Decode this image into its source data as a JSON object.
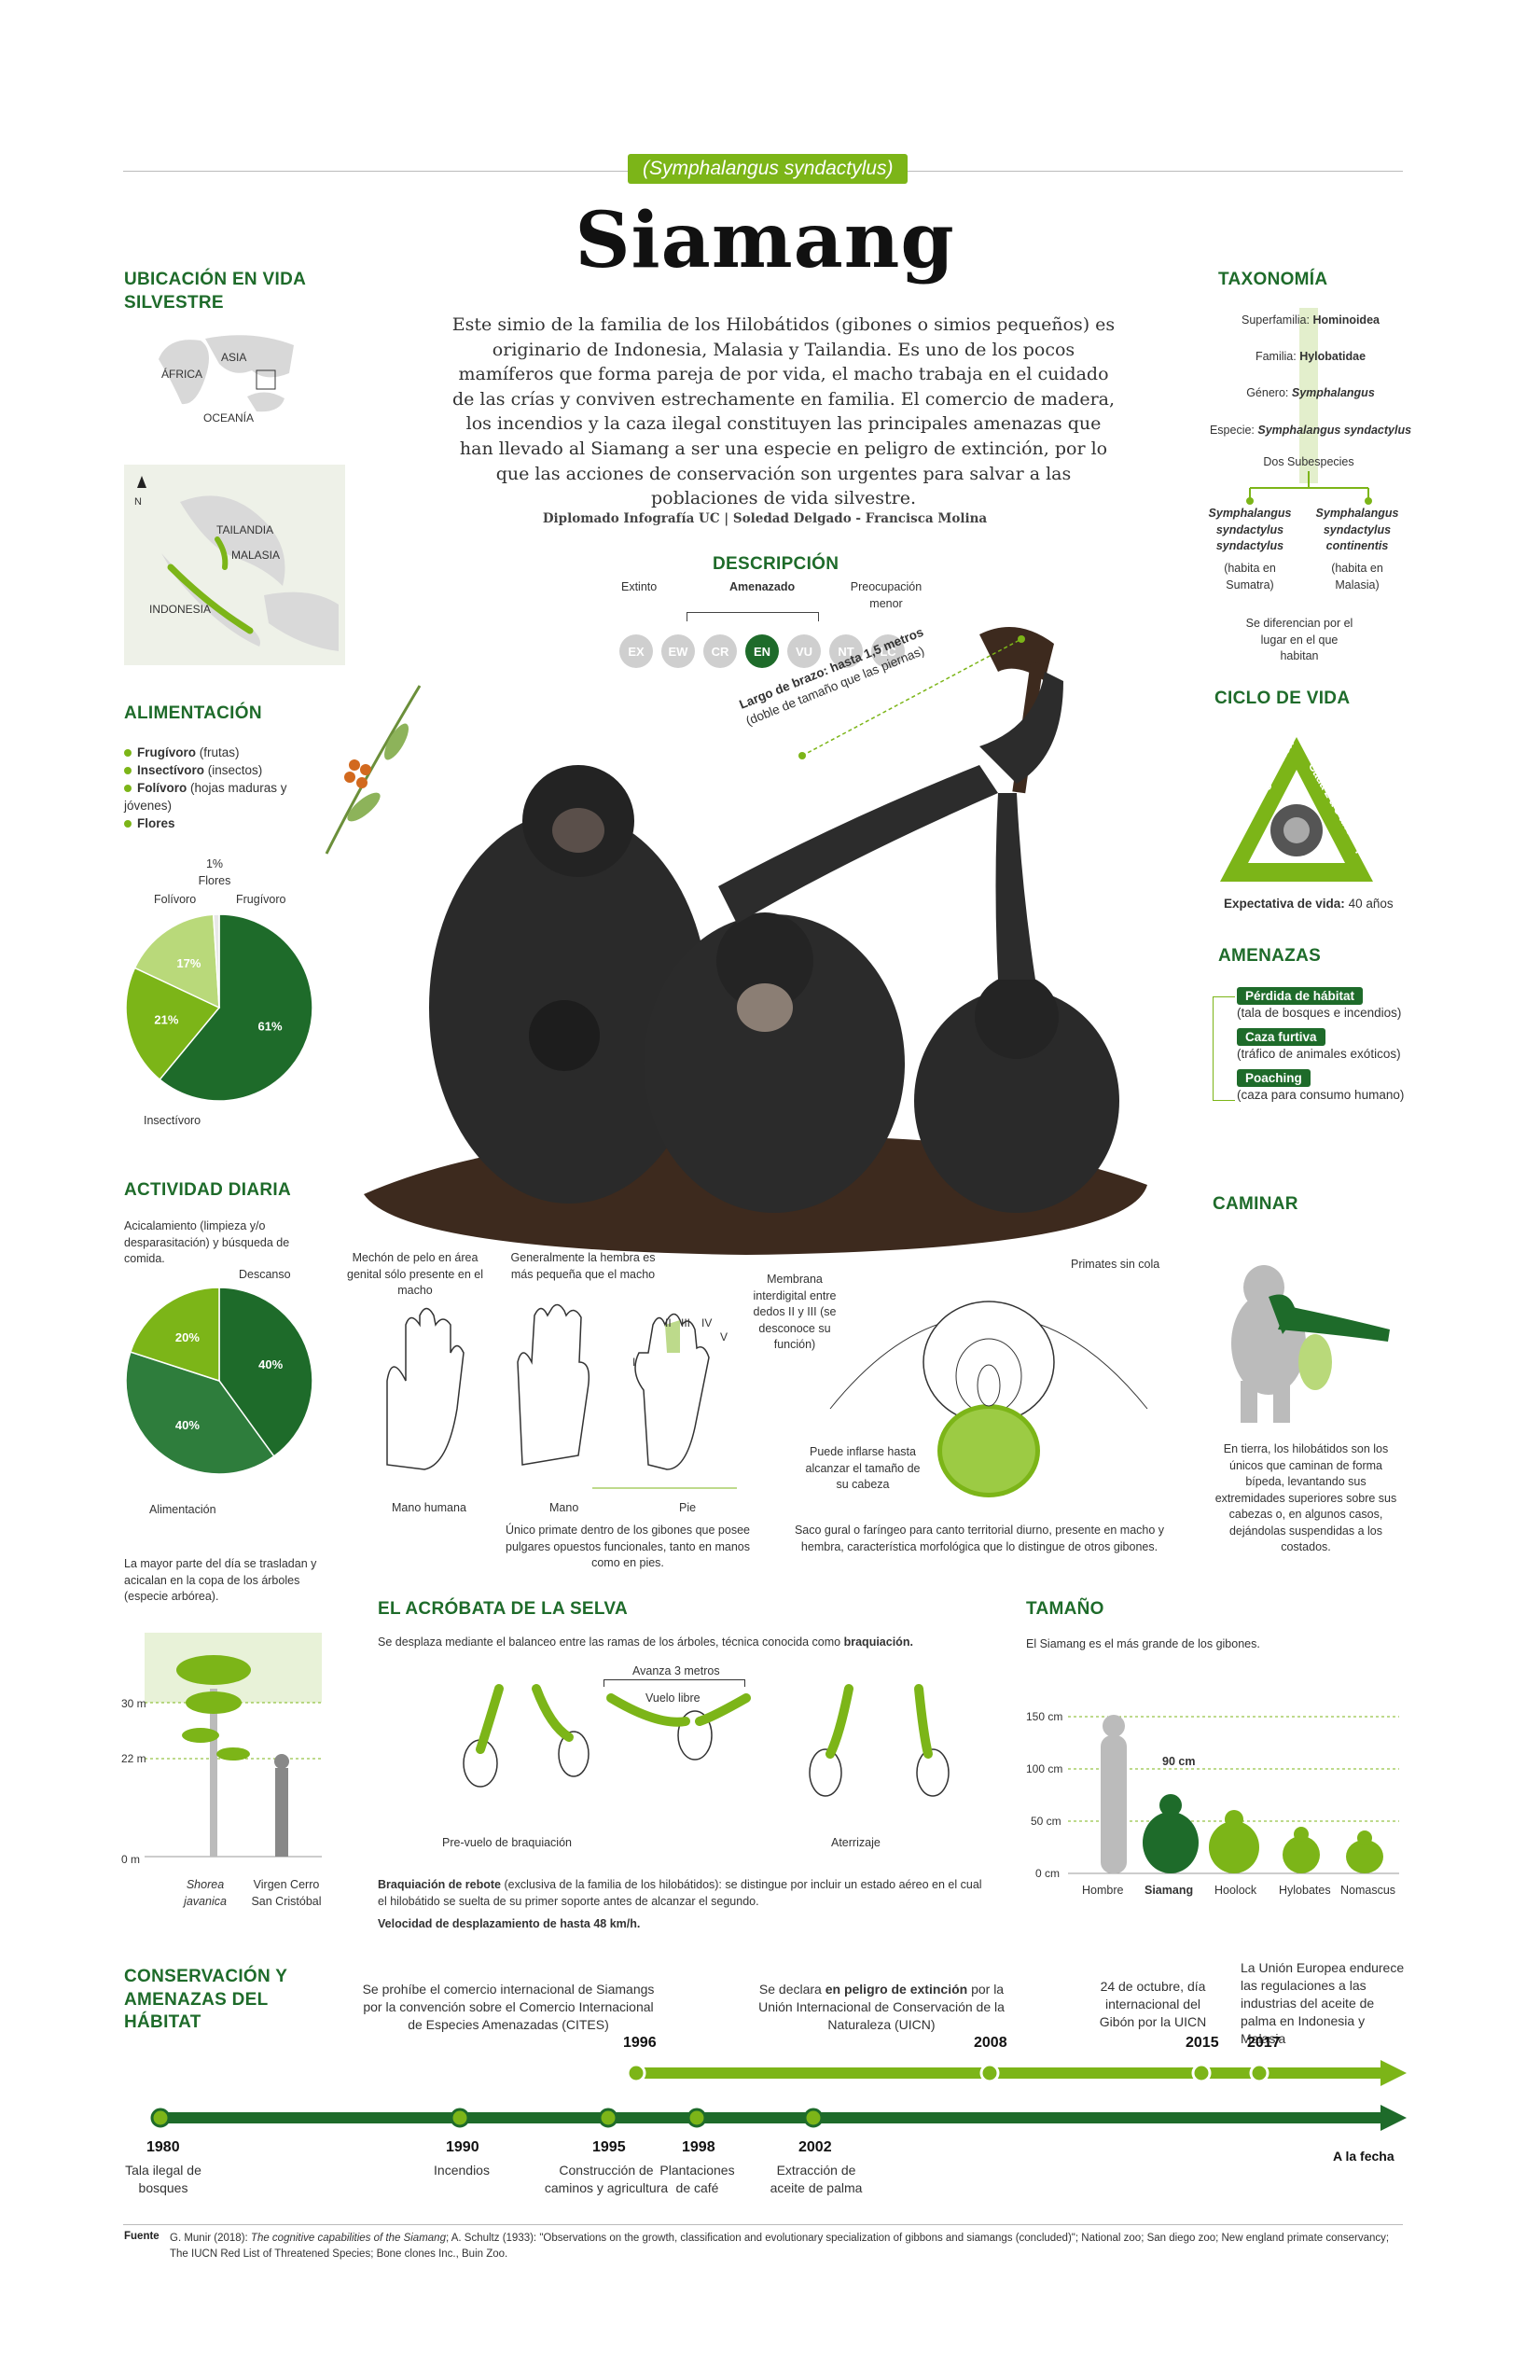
{
  "header": {
    "sci": "(Symphalangus syndactylus)",
    "title": "Siamang",
    "intro": "Este simio de la familia de los Hilobátidos (gibones o simios pequeños) es originario de Indonesia, Malasia y Tailandia. Es uno de los pocos mamíferos que forma pareja de por vida, el macho trabaja en el cuidado de las crías y conviven estrechamente en familia. El comercio de madera, los incendios y la caza ilegal constituyen las principales amenazas que han llevado al Siamang a ser una especie en peligro de extinción, por lo que las acciones de conservación son urgentes para salvar a las poblaciones de vida silvestre.",
    "credits": "Diplomado Infografía UC | Soledad Delgado - Francisca Molina"
  },
  "ubicacion": {
    "title": "UBICACIÓN EN VIDA SILVESTRE",
    "asia": "ASIA",
    "africa": "ÁFRICA",
    "oceania": "OCEANÍA",
    "tailandia": "TAILANDIA",
    "malasia": "MALASIA",
    "indonesia": "INDONESIA",
    "north": "N"
  },
  "descripcion": {
    "title": "DESCRIPCIÓN",
    "extinto": "Extinto",
    "amenazado": "Amenazado",
    "preocupacion": "Preocupación menor",
    "statuses": [
      "EX",
      "EW",
      "CR",
      "EN",
      "VU",
      "NT",
      "LC"
    ]
  },
  "taxonomia": {
    "title": "TAXONOMÍA",
    "rows": [
      {
        "k": "Superfamilia:",
        "v": "Hominoidea"
      },
      {
        "k": "Familia:",
        "v": "Hylobatidae"
      },
      {
        "k": "Género:",
        "v": "Symphalangus"
      },
      {
        "k": "Especie:",
        "v": "Symphalangus syndactylus"
      }
    ],
    "dos": "Dos Subespecies",
    "sub1": "Symphalangus syndactylus syndactylus",
    "sub1n": "(habita en Sumatra)",
    "sub2": "Symphalangus syndactylus continentis",
    "sub2n": "(habita en Malasia)",
    "note": "Se diferencian por el lugar en el que habitan"
  },
  "alimentacion": {
    "title": "ALIMENTACIÓN",
    "items": [
      {
        "b": "Frugívoro",
        "t": " (frutas)"
      },
      {
        "b": "Insectívoro",
        "t": " (insectos)"
      },
      {
        "b": "Folívoro",
        "t": " (hojas maduras y jóvenes)"
      },
      {
        "b": "Flores",
        "t": ""
      }
    ],
    "l_flores": "1%\nFlores",
    "l_folivoro": "Folívoro",
    "l_frugivoro": "Frugívoro",
    "l_insect": "Insectívoro"
  },
  "actividad": {
    "title": "ACTIVIDAD DIARIA",
    "acical": "Acicalamiento (limpieza y/o desparasitación) y búsqueda de comida.",
    "descanso": "Descanso",
    "aliment": "Alimentación",
    "arb": "La mayor parte del día se trasladan y acicalan en la copa de los árboles (especie arbórea).",
    "h30": "30 m",
    "h22": "22 m",
    "h0": "0 m",
    "tree": "Shorea javanica",
    "virgen": "Virgen Cerro San Cristóbal"
  },
  "ciclo": {
    "title": "CICLO DE VIDA",
    "left": "7 a 8 meses gestación",
    "right": "Cada 2 a 3 años apareamiento",
    "exp": "Expectativa de vida:",
    "expv": " 40 años"
  },
  "amenazas": {
    "title": "AMENAZAS",
    "items": [
      {
        "p": "Pérdida de hábitat",
        "d": "(tala de bosques e incendios)"
      },
      {
        "p": "Caza furtiva",
        "d": "(tráfico de animales exóticos)"
      },
      {
        "p": "Poaching",
        "d": "(caza para consumo humano)"
      }
    ]
  },
  "caminar": {
    "title": "CAMINAR",
    "text": "En tierra, los hilobátidos son los únicos que caminan de forma bípeda, levantando sus extremidades superiores sobre sus cabezas o, en algunos casos, dejándolas suspendidas a los costados."
  },
  "anatomia": {
    "brazo": "Largo de brazo: hasta 1,5 metros",
    "brazo2": "(doble de tamaño que las piernas)",
    "mechon": "Mechón de pelo en área genital sólo presente en el macho",
    "hembra": "Generalmente la hembra es más pequeña que el macho",
    "membrana": "Membrana interdigital entre dedos II y III (se desconoce su función)",
    "primates": "Primates sin cola",
    "mano_h": "Mano humana",
    "mano": "Mano",
    "pie": "Pie",
    "pulgar": "Único primate dentro de los gibones que posee pulgares opuestos funcionales, tanto en manos como en pies.",
    "inflar": "Puede inflarse hasta alcanzar el tamaño de su cabeza",
    "saco": "Saco gural o faríngeo para canto territorial diurno, presente en macho y hembra, característica morfológica que lo distingue de otros gibones.",
    "d1": "I",
    "d2": "II",
    "d3": "III",
    "d4": "IV",
    "d5": "V"
  },
  "acrobata": {
    "title": "EL ACRÓBATA DE LA SELVA",
    "intro": "Se desplaza mediante el balanceo entre las ramas de los árboles, técnica conocida como ",
    "introb": "braquiación.",
    "avanza": "Avanza 3 metros",
    "vuelo": "Vuelo libre",
    "pre": "Pre-vuelo de braquiación",
    "aterr": "Aterrizaje",
    "rebote_b": "Braquiación de rebote",
    "rebote": " (exclusiva de la familia de los hilobátidos): se distingue por incluir un estado aéreo en el cual el hilobátido se suelta de su primer soporte antes de alcanzar el segundo.",
    "vel": "Velocidad de desplazamiento de hasta 48 km/h."
  },
  "tamano": {
    "title": "TAMAÑO",
    "intro": "El Siamang es el más grande de los gibones.",
    "t150": "150 cm",
    "t100": "100 cm",
    "t50": "50 cm",
    "t0": "0 cm",
    "s90": "90 cm",
    "labels": [
      "Hombre",
      "Siamang",
      "Hoolock",
      "Hylobates",
      "Nomascus"
    ]
  },
  "conservacion": {
    "title": "CONSERVACIÓN Y AMENAZAS DEL HÁBITAT",
    "top": [
      {
        "y": "1996",
        "t": "Se prohíbe el comercio internacional de Siamangs por la convención sobre el Comercio Internacional de Especies Amenazadas (CITES)"
      },
      {
        "y": "2008",
        "pre": "Se declara ",
        "b": "en peligro de extinción",
        "t": " por la Unión Internacional de Conservación de la Naturaleza (UICN)"
      },
      {
        "y": "2015",
        "t": "24 de octubre, día internacional del Gibón por la UICN"
      },
      {
        "y": "2017",
        "t": "La Unión Europea endurece las regulaciones a las industrias del aceite de palma en Indonesia y Malasia"
      }
    ],
    "bottom": [
      {
        "y": "1980",
        "t": "Tala ilegal de bosques"
      },
      {
        "y": "1990",
        "t": "Incendios"
      },
      {
        "y": "1995",
        "t": "Construcción de caminos y agricultura"
      },
      {
        "y": "1998",
        "t": "Plantaciones de café"
      },
      {
        "y": "2002",
        "t": "Extracción de aceite de palma"
      }
    ],
    "fecha": "A la fecha"
  },
  "fuente": {
    "label": "Fuente",
    "pre": "G. Munir (2018): ",
    "i": "The cognitive capabilities of the Siamang",
    "t": "; A. Schultz (1933): \"Observations on the growth, classification and evolutionary specialization of gibbons and siamangs (concluded)\"; National zoo; San diego zoo; New england primate conservancy; The IUCN Red List of Threatened Species; Bone clones Inc., Buin Zoo."
  },
  "chart_data": [
    {
      "type": "pie",
      "title": "ALIMENTACIÓN",
      "categories": [
        "Frugívoro",
        "Insectívoro",
        "Folívoro",
        "Flores"
      ],
      "values": [
        61,
        21,
        17,
        1
      ],
      "colors": [
        "#1e6b2a",
        "#7cb518",
        "#b9d97a",
        "#e8e8e8"
      ]
    },
    {
      "type": "pie",
      "title": "ACTIVIDAD DIARIA",
      "categories": [
        "Descanso",
        "Alimentación",
        "Acicalamiento y búsqueda de comida"
      ],
      "values": [
        40,
        40,
        20
      ],
      "colors": [
        "#1e6b2a",
        "#2e7d3c",
        "#7cb518"
      ]
    }
  ],
  "colors": {
    "dark": "#1e6b2a",
    "light": "#7cb518"
  }
}
